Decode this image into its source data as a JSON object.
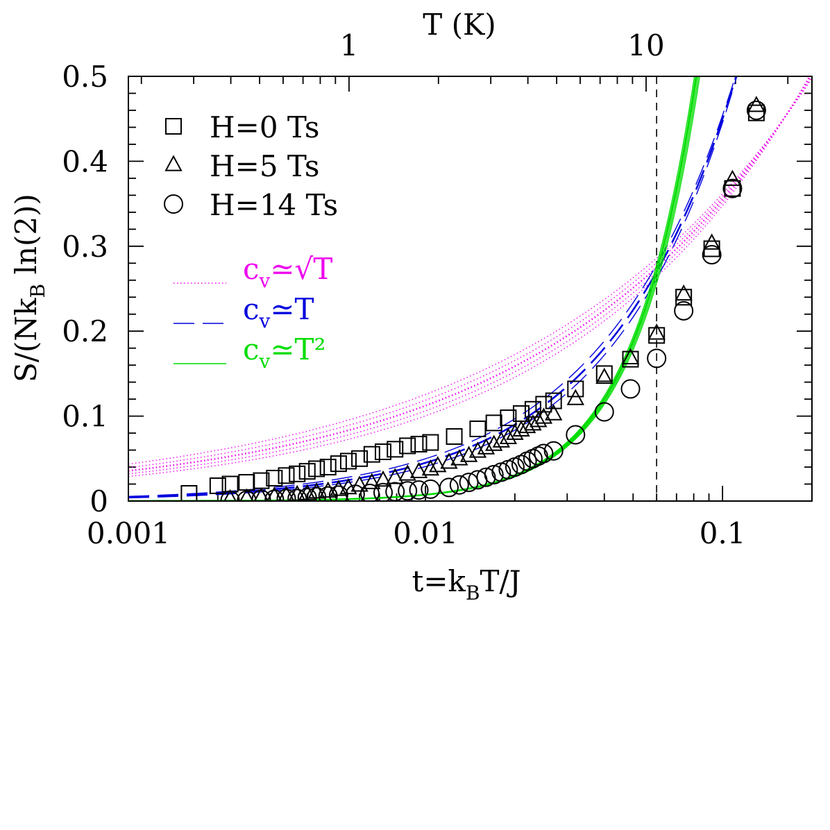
{
  "chart_data": {
    "type": "scatter",
    "x_scale": "log",
    "xlim": [
      0.001,
      0.2
    ],
    "ylim": [
      0,
      0.5
    ],
    "xlabel": "t=k_BT/J",
    "ylabel": "S/(Nk_B ln(2))",
    "top_axis": {
      "label": "T (K)",
      "tick_labels": [
        "1",
        "10"
      ],
      "tick_positions_t": [
        0.00553,
        0.0553
      ]
    },
    "x_tick_labels": [
      "0.001",
      "0.01",
      "0.1"
    ],
    "y_tick_labels": [
      "0",
      "0.1",
      "0.2",
      "0.3",
      "0.4",
      "0.5"
    ],
    "y_ticks": [
      0,
      0.1,
      0.2,
      0.3,
      0.4,
      0.5
    ],
    "vline_t": 0.06,
    "grid": false,
    "legend_position": "top-left",
    "series": [
      {
        "name": "H=0 Ts",
        "marker": "square",
        "x": [
          0.0016,
          0.002,
          0.0022,
          0.0025,
          0.0028,
          0.0031,
          0.0034,
          0.0037,
          0.004,
          0.0043,
          0.0047,
          0.0051,
          0.0055,
          0.006,
          0.0066,
          0.0072,
          0.0079,
          0.0087,
          0.0095,
          0.0104,
          0.0125,
          0.015,
          0.017,
          0.019,
          0.021,
          0.023,
          0.025,
          0.027,
          0.032,
          0.04,
          0.049,
          0.06,
          0.074,
          0.092,
          0.108,
          0.13
        ],
        "y": [
          0.009,
          0.018,
          0.02,
          0.022,
          0.024,
          0.027,
          0.03,
          0.032,
          0.035,
          0.038,
          0.04,
          0.044,
          0.047,
          0.05,
          0.055,
          0.058,
          0.061,
          0.065,
          0.067,
          0.069,
          0.076,
          0.085,
          0.092,
          0.098,
          0.103,
          0.108,
          0.114,
          0.118,
          0.132,
          0.15,
          0.167,
          0.195,
          0.24,
          0.297,
          0.368,
          0.457
        ]
      },
      {
        "name": "H=5 Ts",
        "marker": "triangle",
        "x": [
          0.0022,
          0.0025,
          0.0028,
          0.0031,
          0.0034,
          0.0037,
          0.004,
          0.0043,
          0.0047,
          0.0051,
          0.0055,
          0.006,
          0.0066,
          0.0072,
          0.0079,
          0.0087,
          0.0095,
          0.0104,
          0.011,
          0.012,
          0.013,
          0.014,
          0.015,
          0.016,
          0.017,
          0.018,
          0.019,
          0.02,
          0.021,
          0.022,
          0.023,
          0.024,
          0.025,
          0.027,
          0.032,
          0.04,
          0.049,
          0.06,
          0.074,
          0.092,
          0.108,
          0.13
        ],
        "y": [
          0.002,
          0.003,
          0.004,
          0.005,
          0.006,
          0.007,
          0.008,
          0.01,
          0.011,
          0.013,
          0.015,
          0.018,
          0.021,
          0.024,
          0.027,
          0.031,
          0.034,
          0.037,
          0.041,
          0.045,
          0.049,
          0.053,
          0.058,
          0.062,
          0.066,
          0.07,
          0.074,
          0.079,
          0.083,
          0.087,
          0.09,
          0.094,
          0.098,
          0.102,
          0.12,
          0.145,
          0.168,
          0.197,
          0.243,
          0.303,
          0.378,
          0.465
        ]
      },
      {
        "name": "H=14 Ts",
        "marker": "circle",
        "x": [
          0.0022,
          0.0025,
          0.0028,
          0.0031,
          0.0034,
          0.0037,
          0.004,
          0.0043,
          0.0047,
          0.0051,
          0.0058,
          0.0065,
          0.0072,
          0.0079,
          0.0087,
          0.0095,
          0.0104,
          0.012,
          0.013,
          0.014,
          0.015,
          0.016,
          0.017,
          0.018,
          0.019,
          0.02,
          0.021,
          0.022,
          0.023,
          0.024,
          0.025,
          0.027,
          0.032,
          0.04,
          0.049,
          0.06,
          0.074,
          0.092,
          0.108,
          0.13
        ],
        "y": [
          0.001,
          0.001,
          0.002,
          0.002,
          0.003,
          0.003,
          0.004,
          0.005,
          0.006,
          0.007,
          0.008,
          0.009,
          0.01,
          0.011,
          0.012,
          0.013,
          0.014,
          0.016,
          0.019,
          0.022,
          0.025,
          0.028,
          0.031,
          0.034,
          0.037,
          0.04,
          0.043,
          0.047,
          0.05,
          0.053,
          0.056,
          0.059,
          0.078,
          0.105,
          0.132,
          0.168,
          0.224,
          0.29,
          0.368,
          0.46
        ]
      }
    ],
    "models": [
      {
        "name": "c_v≃√T",
        "label_base": "c",
        "label_sub": "v",
        "label_rel": "≃√T",
        "color": "#ee00ee",
        "dash": "1.5,3.5",
        "exponent": 0.5,
        "anchor": [
          0.06,
          0.275
        ],
        "amplitude_factors": [
          0.96,
          0.98,
          1.0,
          1.02,
          1.04
        ],
        "exponent_offsets": [
          0.04,
          0.02,
          0.0,
          -0.02,
          -0.04
        ]
      },
      {
        "name": "c_v≃T",
        "label_base": "c",
        "label_sub": "v",
        "label_rel": "≃T",
        "color": "#0000dd",
        "dash": "30,12",
        "exponent": 1.0,
        "anchor": [
          0.06,
          0.27
        ],
        "amplitude_factors": [
          0.97,
          1.0,
          1.03
        ],
        "exponent_offsets": [
          0.04,
          0.0,
          -0.04
        ]
      },
      {
        "name": "c_v≃T²",
        "label_base": "c",
        "label_sub": "v",
        "label_rel": "≃T²",
        "color": "#00dd00",
        "dash": "",
        "exponent": 2.0,
        "anchor": [
          0.06,
          0.27
        ],
        "amplitude_factors": [
          0.95,
          0.97,
          0.99,
          1.0,
          1.01,
          1.03
        ],
        "exponent_offsets": [
          0.0,
          0.0,
          0.0,
          0.0,
          0.0,
          0.0
        ]
      }
    ]
  }
}
